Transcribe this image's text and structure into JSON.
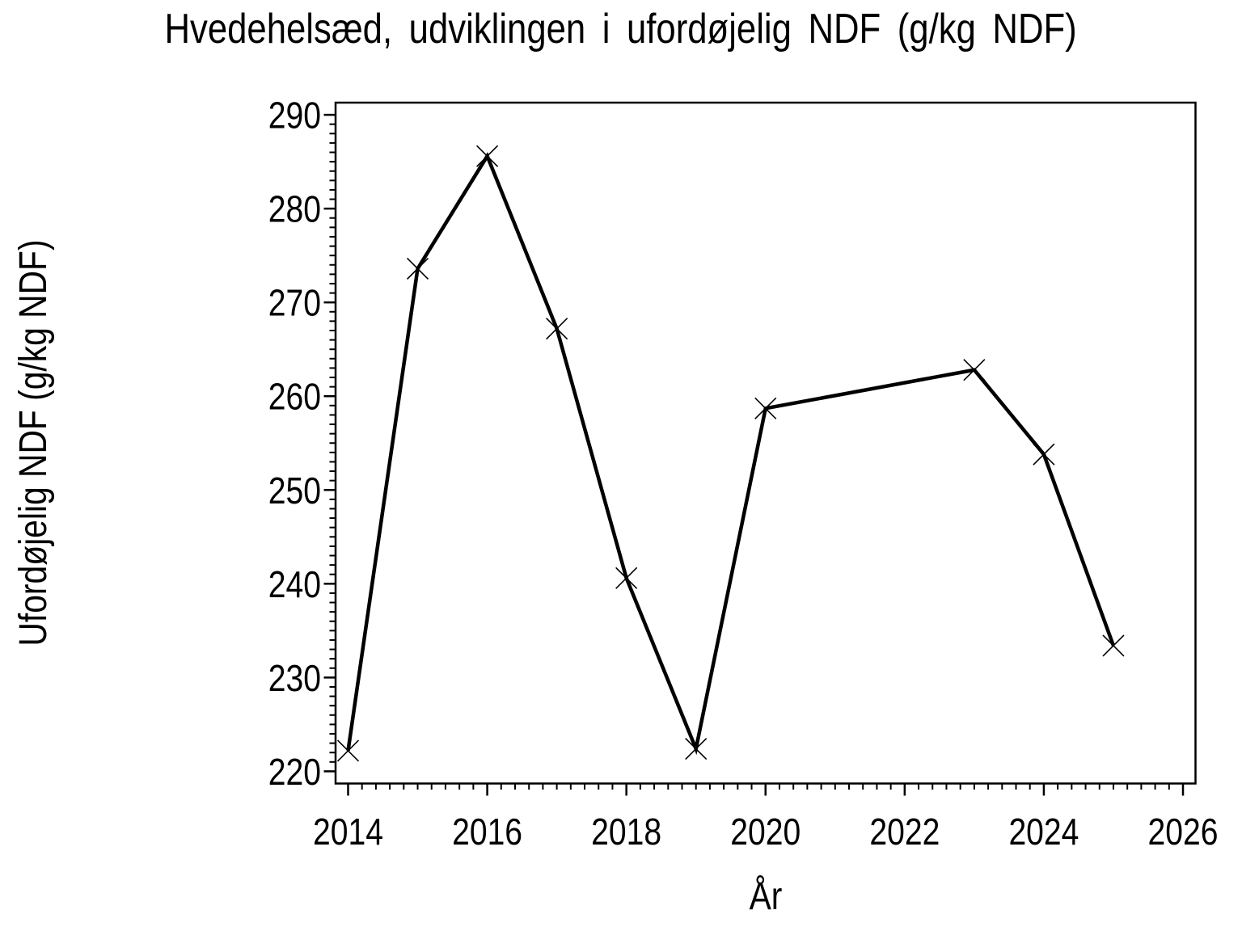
{
  "page": {
    "background": "#ffffff",
    "foreground": "#000000"
  },
  "chart_data": {
    "type": "line",
    "title": "Hvedehelsæd, udviklingen i ufordøjelig NDF (g/kg NDF)",
    "xlabel": "År",
    "ylabel": "Ufordøjelig NDF (g/kg NDF)",
    "series": [
      {
        "name": "ufordøjelig NDF",
        "x": [
          2014,
          2015,
          2016,
          2017,
          2018,
          2019,
          2020,
          2023,
          2024,
          2025
        ],
        "y": [
          222.2,
          273.6,
          285.6,
          267.2,
          240.6,
          222.4,
          258.7,
          262.8,
          253.8,
          233.4
        ],
        "marker": "x",
        "color": "#000000"
      }
    ],
    "xlim": [
      2013.82,
      2026.18
    ],
    "ylim": [
      218.7,
      291.3
    ],
    "x_major_ticks": [
      2014,
      2016,
      2018,
      2020,
      2022,
      2024,
      2026
    ],
    "x_minor_step": 0.2,
    "y_major_ticks": [
      220,
      230,
      240,
      250,
      260,
      270,
      280,
      290
    ],
    "y_minor_step": 1,
    "grid": false,
    "frame": true,
    "legend": "none"
  }
}
